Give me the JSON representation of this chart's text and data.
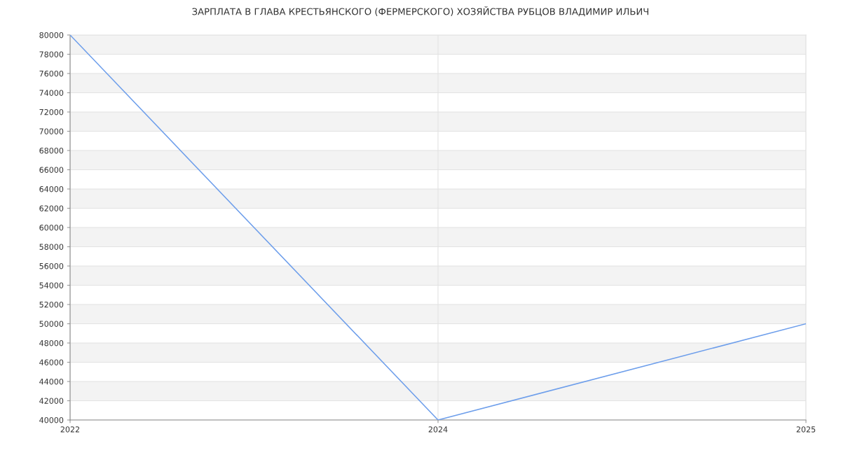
{
  "chart_data": {
    "type": "line",
    "title": "ЗАРПЛАТА В ГЛАВА КРЕСТЬЯНСКОГО (ФЕРМЕРСКОГО) ХОЗЯЙСТВА РУБЦОВ ВЛАДИМИР ИЛЬИЧ",
    "categories": [
      "2022",
      "2024",
      "2025"
    ],
    "series": [
      {
        "color": "#6d9eeb",
        "values": [
          80000,
          40000,
          50000
        ]
      }
    ],
    "ylim": [
      40000,
      80000
    ],
    "yticks": [
      40000,
      42000,
      44000,
      46000,
      48000,
      50000,
      52000,
      54000,
      56000,
      58000,
      60000,
      62000,
      64000,
      66000,
      68000,
      70000,
      72000,
      74000,
      76000,
      78000,
      80000
    ],
    "grid": true,
    "marker": "none",
    "line_style": "solid"
  }
}
